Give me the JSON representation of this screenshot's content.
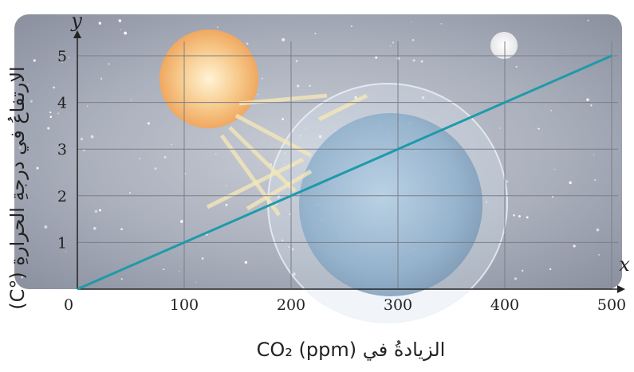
{
  "chart_data": {
    "type": "line",
    "xlabel": "الزيادةُ في CO₂ (ppm)",
    "ylabel": "الارتفاعُ في درجةِ الحرارةِ (°C)",
    "x_axis_symbol": "x",
    "y_axis_symbol": "y",
    "origin_label": "0",
    "xlim": [
      0,
      500
    ],
    "ylim": [
      0,
      5
    ],
    "x_ticks": [
      "100",
      "200",
      "300",
      "400",
      "500"
    ],
    "y_ticks": [
      "1",
      "2",
      "3",
      "4",
      "5"
    ],
    "grid": true,
    "series": [
      {
        "x": [
          0,
          100,
          200,
          300,
          400,
          500
        ],
        "y": [
          0,
          1,
          2,
          3,
          4,
          5
        ],
        "color": "#1e9aaa"
      }
    ],
    "background": "space scene: sun, moon and Earth with greenhouse atmosphere"
  }
}
